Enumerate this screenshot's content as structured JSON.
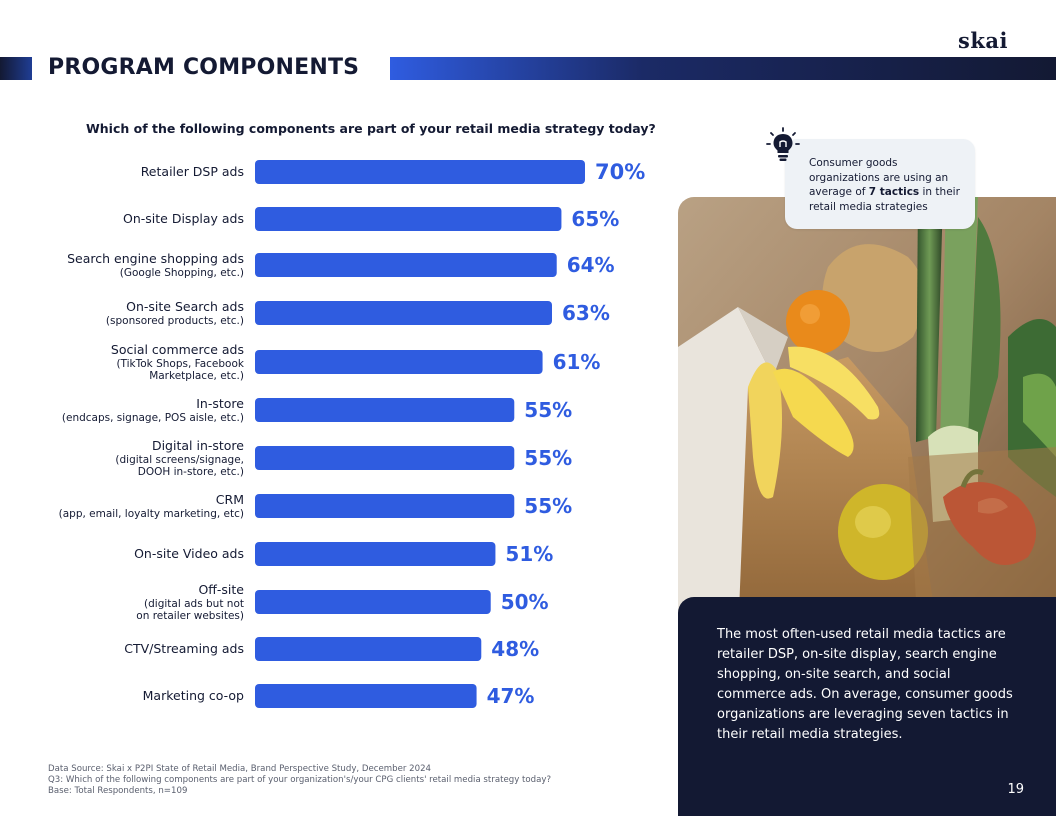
{
  "brand": {
    "logo": "skai"
  },
  "page": {
    "title": "PROGRAM COMPONENTS",
    "number": "19"
  },
  "chart_data": {
    "type": "bar",
    "orientation": "horizontal",
    "title": "Which of the following components are part of your retail media strategy today?",
    "categories": [
      "Retailer DSP ads",
      "On-site Display ads",
      "Search engine shopping ads",
      "On-site Search ads",
      "Social commerce ads",
      "In-store",
      "Digital in-store",
      "CRM",
      "On-site Video ads",
      "Off-site",
      "CTV/Streaming ads",
      "Marketing co-op"
    ],
    "category_notes": [
      [],
      [],
      [
        "(Google Shopping, etc.)"
      ],
      [
        "(sponsored products, etc.)"
      ],
      [
        "(TikTok Shops, Facebook",
        "Marketplace, etc.)"
      ],
      [
        "(endcaps, signage, POS aisle, etc.)"
      ],
      [
        "(digital screens/signage,",
        "DOOH in-store, etc.)"
      ],
      [
        "(app, email, loyalty marketing, etc)"
      ],
      [],
      [
        "(digital ads but not",
        "on retailer websites)"
      ],
      [],
      []
    ],
    "values": [
      70,
      65,
      64,
      63,
      61,
      55,
      55,
      55,
      51,
      50,
      48,
      47
    ],
    "value_labels": [
      "70%",
      "65%",
      "64%",
      "63%",
      "61%",
      "55%",
      "55%",
      "55%",
      "51%",
      "50%",
      "48%",
      "47%"
    ],
    "unit": "%",
    "xlim": [
      0,
      70
    ],
    "grid": false,
    "legend": "none",
    "bar_color": "#2f5ce0",
    "label_color": "#2f5ce0"
  },
  "callout": {
    "icon": "lightbulb-icon",
    "text_before": "Consumer goods organizations are using an average of ",
    "text_bold": "7 tactics",
    "text_after": " in their retail media strategies"
  },
  "summary": {
    "text": "The most often-used retail media tactics are retailer DSP, on-site display, search engine shopping, on-site search, and social commerce ads.  On average, consumer goods organizations are leveraging seven tactics in their retail media strategies."
  },
  "footnote": {
    "source": "Data Source: Skai x P2PI State of Retail Media, Brand Perspective Study, December 2024",
    "question": "Q3: Which of the following components are part of your organization's/your CPG clients' retail media strategy today?",
    "base": "Base:  Total Respondents, n=109"
  },
  "colors": {
    "navy": "#131933",
    "accent": "#2f5ce0"
  }
}
